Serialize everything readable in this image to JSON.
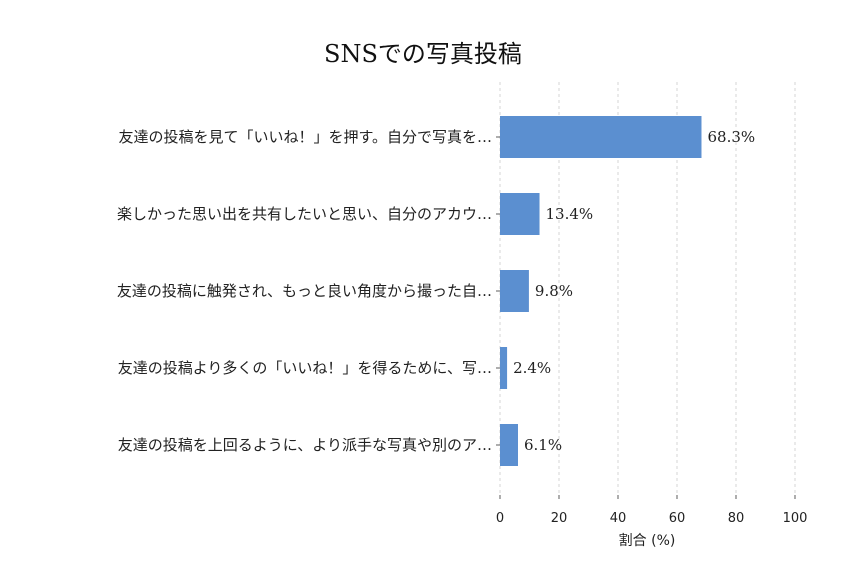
{
  "chart_data": {
    "type": "bar",
    "orientation": "horizontal",
    "title": "SNSでの写真投稿",
    "xlabel": "割合 (%)",
    "ylabel": "",
    "xlim": [
      0,
      100
    ],
    "xticks": [
      0,
      20,
      40,
      60,
      80,
      100
    ],
    "grid": "vertical dashed",
    "categories": [
      "友達の投稿を見て「いいね！」を押す。自分で写真を…",
      "楽しかった思い出を共有したいと思い、自分のアカウ…",
      "友達の投稿に触発され、もっと良い角度から撮った自…",
      "友達の投稿より多くの「いいね！」を得るために、写…",
      "友達の投稿を上回るように、より派手な写真や別のア…"
    ],
    "values": [
      68.3,
      13.4,
      9.8,
      2.4,
      6.1
    ],
    "value_labels": [
      "68.3%",
      "13.4%",
      "9.8%",
      "2.4%",
      "6.1%"
    ],
    "bar_color": "#5b8fd0"
  }
}
